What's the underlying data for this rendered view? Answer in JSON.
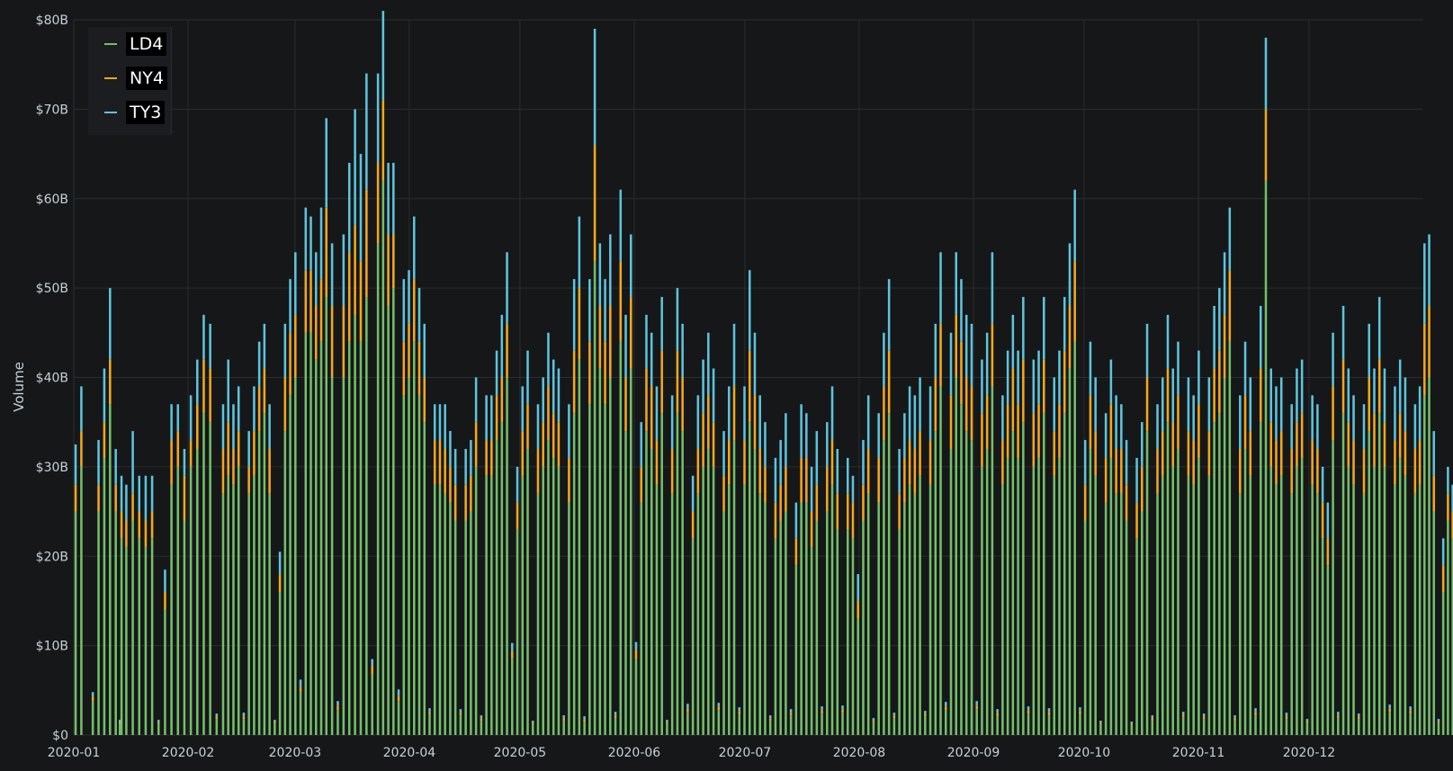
{
  "chart_data": {
    "type": "bar",
    "stacked": true,
    "xlabel": "",
    "ylabel": "Volume",
    "ylim": [
      0,
      80
    ],
    "y_unit": "billions USD",
    "y_ticks": [
      "$0",
      "$10B",
      "$20B",
      "$30B",
      "$40B",
      "$50B",
      "$60B",
      "$70B",
      "$80B"
    ],
    "x_ticks": [
      "2020-01",
      "2020-02",
      "2020-03",
      "2020-04",
      "2020-05",
      "2020-06",
      "2020-07",
      "2020-08",
      "2020-09",
      "2020-10",
      "2020-11",
      "2020-12"
    ],
    "x_range": [
      "2020-01-01",
      "2020-12-31"
    ],
    "grid": true,
    "legend_position": "top-left",
    "colors": {
      "LD4": "#73bf69",
      "NY4": "#f2a81d",
      "TY3": "#5dc4dc",
      "background": "#161719",
      "grid": "#2c2d31"
    },
    "series": [
      {
        "name": "LD4"
      },
      {
        "name": "NY4"
      },
      {
        "name": "TY3"
      }
    ],
    "weeks": [
      {
        "start": "2020-01-01",
        "LD4": [
          25,
          30,
          0,
          3.8,
          25,
          31,
          37,
          25,
          22
        ],
        "NY4": [
          3,
          4,
          0,
          0.5,
          3,
          4,
          5,
          3,
          3
        ],
        "TY3": [
          4.5,
          5,
          0,
          0.5,
          5,
          6,
          8,
          4,
          4
        ]
      },
      {
        "start": "2020-01-13",
        "LD4": [
          1.2,
          21,
          24,
          22,
          21,
          22,
          1.2,
          14
        ],
        "NY4": [
          0.2,
          3,
          3,
          3,
          3,
          3,
          0.2,
          2
        ],
        "TY3": [
          0.3,
          4,
          7,
          4,
          5,
          4,
          0.3,
          2.5
        ]
      },
      {
        "start": "2020-01-27",
        "LD4": [
          28,
          30,
          24,
          30,
          32,
          36,
          35,
          1.8
        ],
        "NY4": [
          5,
          4,
          5,
          3,
          5,
          6,
          6,
          0.3
        ],
        "TY3": [
          4,
          3,
          3,
          5,
          5,
          5,
          5,
          0.3
        ]
      },
      {
        "start": "2020-02-10",
        "LD4": [
          27,
          29,
          28,
          30,
          1.8,
          27,
          29,
          34,
          36,
          27
        ],
        "NY4": [
          5,
          6,
          4,
          4,
          0.3,
          3,
          5,
          5,
          5,
          5
        ],
        "TY3": [
          5,
          7,
          5,
          5,
          0.4,
          4,
          5,
          5,
          5,
          5
        ]
      },
      {
        "start": "2020-02-24",
        "LD4": [
          1.3,
          16,
          34,
          38,
          40,
          4.8,
          45,
          45,
          42,
          44
        ],
        "NY4": [
          0.2,
          2,
          6,
          7,
          7,
          0.6,
          7,
          7,
          6,
          7
        ],
        "TY3": [
          0.2,
          2.5,
          6,
          6,
          7,
          0.8,
          7,
          6,
          6,
          8
        ]
      },
      {
        "start": "2020-03-09",
        "LD4": [
          49,
          40,
          2.8,
          40,
          44,
          47,
          44,
          49,
          6.8
        ],
        "NY4": [
          10,
          8,
          0.5,
          8,
          10,
          10,
          9,
          12,
          1
        ],
        "TY3": [
          10,
          7,
          0.5,
          8,
          10,
          13,
          12,
          13,
          0.7
        ]
      },
      {
        "start": "2020-03-23",
        "LD4": [
          55,
          62,
          48,
          50,
          3.8,
          38,
          40,
          44,
          38,
          35
        ],
        "NY4": [
          9,
          9,
          8,
          6,
          0.6,
          6,
          6,
          7,
          6,
          5
        ],
        "TY3": [
          10,
          10,
          8,
          8,
          0.7,
          7,
          6,
          7,
          6,
          6
        ]
      },
      {
        "start": "2020-04-06",
        "LD4": [
          2.3,
          28,
          28,
          27,
          26,
          24,
          2.2,
          24,
          25,
          30
        ],
        "NY4": [
          0.3,
          5,
          5,
          5,
          4,
          4,
          0.3,
          4,
          4,
          5
        ],
        "TY3": [
          0.4,
          4,
          4,
          5,
          4,
          4,
          0.4,
          4,
          4,
          5
        ]
      },
      {
        "start": "2020-04-20",
        "LD4": [
          1.6,
          29,
          29,
          33,
          35,
          40,
          8.6,
          23,
          29,
          32
        ],
        "NY4": [
          0.3,
          4,
          4,
          5,
          5,
          6,
          0.8,
          3,
          5,
          5
        ],
        "TY3": [
          0.3,
          5,
          5,
          5,
          7,
          8,
          0.9,
          4,
          5,
          6
        ]
      },
      {
        "start": "2020-05-04",
        "LD4": [
          1.2,
          27,
          30,
          33,
          31,
          30,
          1.6,
          26,
          36,
          42
        ],
        "NY4": [
          0.2,
          5,
          5,
          6,
          5,
          5,
          0.3,
          5,
          7,
          8
        ],
        "TY3": [
          0.2,
          5,
          5,
          6,
          6,
          6,
          0.3,
          6,
          8,
          8
        ]
      },
      {
        "start": "2020-05-18",
        "LD4": [
          1.5,
          37,
          53,
          41,
          37,
          40,
          1.9,
          44,
          34,
          41
        ],
        "NY4": [
          0.3,
          7,
          13,
          7,
          7,
          8,
          0.3,
          9,
          6,
          8
        ],
        "TY3": [
          0.3,
          7,
          13,
          7,
          7,
          8,
          0.4,
          8,
          7,
          7
        ]
      },
      {
        "start": "2020-06-01",
        "LD4": [
          8.5,
          26,
          34,
          32,
          28,
          36,
          1.2,
          27,
          36,
          34
        ],
        "NY4": [
          1,
          4,
          7,
          7,
          5,
          7,
          0.2,
          5,
          7,
          6
        ],
        "TY3": [
          0.9,
          5,
          6,
          6,
          6,
          6,
          0.3,
          6,
          7,
          6
        ]
      },
      {
        "start": "2020-06-15",
        "LD4": [
          2.6,
          22,
          27,
          30,
          32,
          30,
          2.8,
          25,
          28,
          33
        ],
        "NY4": [
          0.4,
          3,
          5,
          6,
          6,
          5,
          0.4,
          4,
          5,
          6
        ],
        "TY3": [
          0.5,
          4,
          6,
          6,
          7,
          6,
          0.4,
          5,
          6,
          7
        ]
      },
      {
        "start": "2020-06-29",
        "LD4": [
          2.3,
          28,
          35,
          32,
          27,
          26,
          1.6,
          22,
          24,
          25
        ],
        "NY4": [
          0.4,
          5,
          8,
          6,
          5,
          4,
          0.3,
          4,
          4,
          5
        ],
        "TY3": [
          0.4,
          6,
          9,
          7,
          6,
          5,
          0.3,
          5,
          5,
          6
        ]
      },
      {
        "start": "2020-07-13",
        "LD4": [
          2.2,
          19,
          26,
          26,
          21,
          24,
          2.4,
          25,
          28,
          23
        ],
        "NY4": [
          0.3,
          3,
          5,
          5,
          4,
          4,
          0.4,
          5,
          5,
          4
        ],
        "TY3": [
          0.4,
          4,
          6,
          5,
          5,
          6,
          0.4,
          5,
          6,
          5
        ]
      },
      {
        "start": "2020-07-27",
        "LD4": [
          2.5,
          23,
          22,
          13,
          24,
          27,
          1.4,
          26,
          33,
          36
        ],
        "NY4": [
          0.4,
          4,
          4,
          2,
          4,
          5,
          0.2,
          5,
          6,
          7
        ],
        "TY3": [
          0.4,
          4,
          3,
          3,
          5,
          6,
          0.3,
          5,
          6,
          8
        ]
      },
      {
        "start": "2020-08-10",
        "LD4": [
          1.9,
          23,
          26,
          28,
          27,
          29,
          2.1,
          28,
          34,
          39
        ],
        "NY4": [
          0.3,
          4,
          5,
          5,
          5,
          5,
          0.3,
          5,
          6,
          7
        ],
        "TY3": [
          0.3,
          5,
          5,
          6,
          6,
          6,
          0.3,
          6,
          6,
          8
        ]
      },
      {
        "start": "2020-08-24",
        "LD4": [
          2.8,
          32,
          40,
          37,
          34,
          33,
          2.9,
          30,
          32,
          39
        ],
        "NY4": [
          0.4,
          6,
          7,
          7,
          6,
          6,
          0.4,
          6,
          6,
          7
        ],
        "TY3": [
          0.5,
          7,
          7,
          7,
          7,
          7,
          0.5,
          6,
          7,
          8
        ]
      },
      {
        "start": "2020-09-07",
        "LD4": [
          2.1,
          28,
          31,
          34,
          31,
          35,
          2.4,
          30,
          31,
          36
        ],
        "NY4": [
          0.4,
          5,
          6,
          7,
          6,
          7,
          0.4,
          6,
          6,
          6
        ],
        "TY3": [
          0.4,
          5,
          6,
          6,
          6,
          7,
          0.4,
          6,
          6,
          7
        ]
      },
      {
        "start": "2020-09-21",
        "LD4": [
          2.2,
          29,
          31,
          36,
          41,
          44,
          2.3,
          24,
          32,
          29
        ],
        "NY4": [
          0.4,
          5,
          6,
          7,
          7,
          9,
          0.4,
          4,
          6,
          5
        ],
        "TY3": [
          0.4,
          6,
          6,
          6,
          7,
          8,
          0.4,
          5,
          6,
          6
        ]
      },
      {
        "start": "2020-10-05",
        "LD4": [
          1.2,
          26,
          31,
          27,
          27,
          24,
          1.1,
          22,
          25,
          34
        ],
        "NY4": [
          0.2,
          5,
          6,
          5,
          5,
          4,
          0.2,
          4,
          5,
          6
        ],
        "TY3": [
          0.2,
          5,
          5,
          6,
          5,
          5,
          0.2,
          5,
          5,
          6
        ]
      },
      {
        "start": "2020-10-19",
        "LD4": [
          1.6,
          27,
          29,
          35,
          30,
          32,
          2.0,
          29,
          28,
          31
        ],
        "NY4": [
          0.3,
          5,
          5,
          6,
          5,
          6,
          0.3,
          5,
          5,
          6
        ],
        "TY3": [
          0.3,
          5,
          6,
          6,
          6,
          6,
          0.3,
          6,
          5,
          6
        ]
      },
      {
        "start": "2020-11-02",
        "LD4": [
          1.8,
          29,
          35,
          36,
          40,
          44,
          1.6,
          27,
          32,
          29
        ],
        "NY4": [
          0.3,
          5,
          6,
          7,
          7,
          8,
          0.3,
          5,
          6,
          5
        ],
        "TY3": [
          0.3,
          6,
          7,
          7,
          7,
          7,
          0.3,
          6,
          6,
          6
        ]
      },
      {
        "start": "2020-11-16",
        "LD4": [
          2.2,
          35,
          62,
          30,
          28,
          29,
          1.8,
          27,
          30,
          31
        ],
        "NY4": [
          0.4,
          6,
          8,
          5,
          5,
          5,
          0.3,
          5,
          5,
          5
        ],
        "TY3": [
          0.4,
          7,
          8,
          6,
          6,
          6,
          0.4,
          5,
          6,
          6
        ]
      },
      {
        "start": "2020-11-30",
        "LD4": [
          1.3,
          28,
          27,
          22,
          19,
          33,
          1.9,
          36,
          30,
          28
        ],
        "NY4": [
          0.2,
          5,
          5,
          4,
          3,
          6,
          0.3,
          6,
          5,
          5
        ],
        "TY3": [
          0.3,
          5,
          5,
          4,
          4,
          6,
          0.4,
          6,
          6,
          5
        ]
      },
      {
        "start": "2020-12-14",
        "LD4": [
          1.8,
          27,
          34,
          30,
          36,
          30,
          2.6,
          28,
          31,
          29
        ],
        "NY4": [
          0.3,
          5,
          6,
          6,
          6,
          5,
          0.4,
          5,
          5,
          5
        ],
        "TY3": [
          0.3,
          5,
          6,
          5,
          7,
          6,
          0.4,
          6,
          6,
          6
        ]
      },
      {
        "start": "2020-12-28",
        "LD4": [
          2.4,
          27,
          28,
          38,
          40,
          25,
          1.3,
          16,
          24,
          22,
          20
        ],
        "NY4": [
          0.4,
          5,
          5,
          8,
          8,
          4,
          0.2,
          3,
          3,
          3,
          3
        ],
        "TY3": [
          0.4,
          5,
          6,
          9,
          8,
          5,
          0.3,
          3,
          3,
          3,
          3
        ]
      }
    ]
  }
}
